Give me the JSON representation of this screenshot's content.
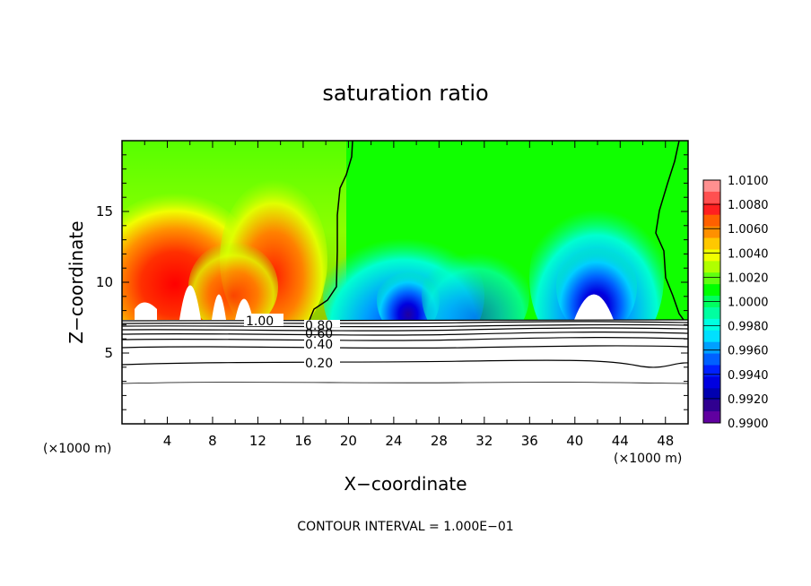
{
  "chart_data": {
    "type": "heatmap",
    "title": "saturation ratio",
    "xlabel": "X−coordinate",
    "ylabel": "Z−coordinate",
    "x_unit_left": "(×1000 m)",
    "x_unit_right": "(×1000 m)",
    "footer": "CONTOUR INTERVAL = 1.000E−01",
    "xlim": [
      0,
      50
    ],
    "ylim": [
      0,
      20
    ],
    "x_ticks": [
      4,
      8,
      12,
      16,
      20,
      24,
      28,
      32,
      36,
      40,
      44,
      48
    ],
    "y_ticks": [
      5,
      10,
      15
    ],
    "colorbar_labels": [
      "1.0100",
      "1.0080",
      "1.0060",
      "1.0040",
      "1.0020",
      "1.0000",
      "0.9980",
      "0.9960",
      "0.9940",
      "0.9920",
      "0.9900"
    ],
    "colorbar_colors": [
      "#ff9090",
      "#ff5050",
      "#ff2020",
      "#ff6000",
      "#ff9000",
      "#ffc800",
      "#f0ff00",
      "#b0ff00",
      "#60ff10",
      "#00ff00",
      "#00ff60",
      "#00ffa0",
      "#00ffe0",
      "#00e0ff",
      "#00a0ff",
      "#0060ff",
      "#0020ff",
      "#0000e0",
      "#0000b0",
      "#300090",
      "#6000a0"
    ],
    "contour_labels": [
      "1.00",
      "0.80",
      "0.60",
      "0.40",
      "0.20"
    ]
  }
}
